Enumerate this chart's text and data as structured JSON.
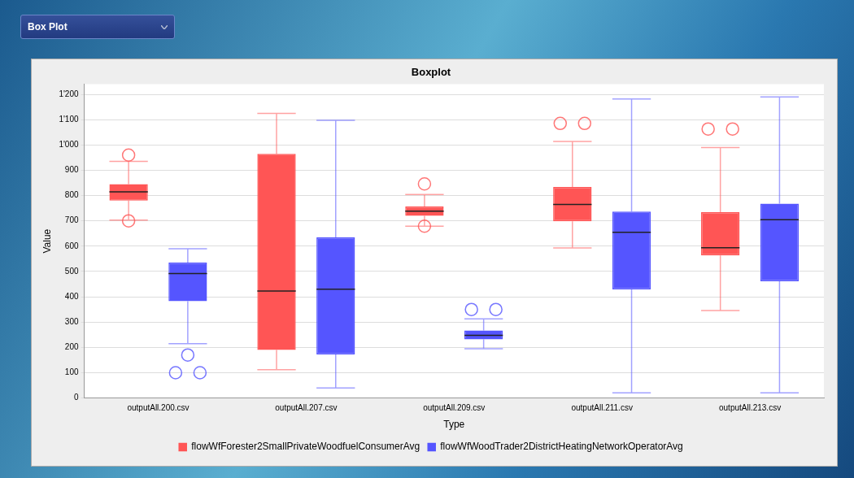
{
  "chart_data": {
    "type": "box",
    "title": "Boxplot",
    "xlabel": "Type",
    "ylabel": "Value",
    "annotations": [
      "Box Plot"
    ],
    "categories": [
      "outputAll.200.csv",
      "outputAll.207.csv",
      "outputAll.209.csv",
      "outputAll.211.csv",
      "outputAll.213.csv"
    ],
    "series": [
      {
        "name": "flowWfForester2SmallPrivateWoodfuelConsumerAvg",
        "color": "#ff5555",
        "boxes": [
          {
            "low": 703,
            "q1": 780,
            "median": 815,
            "q3": 845,
            "high": 935,
            "outliers": [
              960,
              700
            ]
          },
          {
            "low": 112,
            "q1": 190,
            "median": 423,
            "q3": 965,
            "high": 1125
          },
          {
            "low": 679,
            "q1": 720,
            "median": 738,
            "q3": 757,
            "high": 804,
            "outliers": [
              846,
              679
            ]
          },
          {
            "low": 593,
            "q1": 698,
            "median": 765,
            "q3": 834,
            "high": 1014,
            "outliers": [
              1085,
              1085
            ]
          },
          {
            "low": 346,
            "q1": 563,
            "median": 594,
            "q3": 734,
            "high": 990,
            "outliers": [
              1063,
              1063
            ]
          }
        ]
      },
      {
        "name": "flowWfWoodTrader2DistrictHeatingNetworkOperatorAvg",
        "color": "#5555ff",
        "boxes": [
          {
            "low": 215,
            "q1": 383,
            "median": 492,
            "q3": 535,
            "high": 590,
            "outliers": [
              170,
              100,
              100
            ]
          },
          {
            "low": 40,
            "q1": 172,
            "median": 430,
            "q3": 635,
            "high": 1097
          },
          {
            "low": 195,
            "q1": 232,
            "median": 248,
            "q3": 267,
            "high": 313,
            "outliers": [
              350,
              350
            ]
          },
          {
            "low": 20,
            "q1": 429,
            "median": 655,
            "q3": 737,
            "high": 1182
          },
          {
            "low": 20,
            "q1": 461,
            "median": 705,
            "q3": 768,
            "high": 1190
          }
        ]
      }
    ],
    "ylim": [
      0,
      1240
    ],
    "yticks": [
      0,
      100,
      200,
      300,
      400,
      500,
      600,
      700,
      800,
      900,
      {
        "value": 1000,
        "label": "1'000"
      },
      {
        "value": 1100,
        "label": "1'100"
      },
      {
        "value": 1200,
        "label": "1'200"
      }
    ],
    "grid": "y",
    "legend": "bottom"
  }
}
